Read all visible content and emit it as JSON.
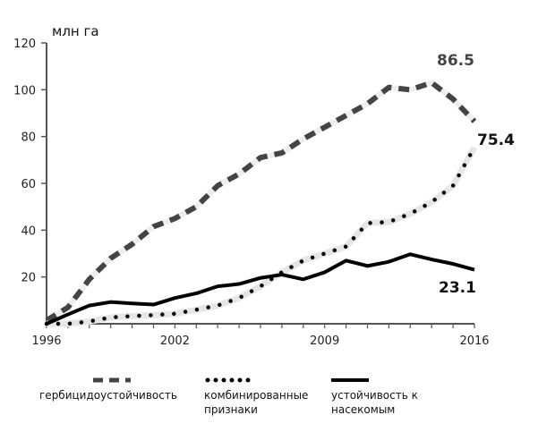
{
  "chart_data": {
    "type": "line",
    "title": "",
    "ylabel": "млн га",
    "xlabel": "",
    "x": [
      1996,
      1997,
      1998,
      1999,
      2000,
      2001,
      2002,
      2003,
      2004,
      2005,
      2006,
      2007,
      2008,
      2009,
      2010,
      2011,
      2012,
      2013,
      2014,
      2015,
      2016
    ],
    "xticks": [
      "1996",
      "2002",
      "2009",
      "2016"
    ],
    "yticks": [
      "20",
      "40",
      "60",
      "80",
      "100",
      "120"
    ],
    "ylim": [
      0,
      120
    ],
    "xlim": [
      1996,
      2016
    ],
    "grid": false,
    "legend_position": "bottom",
    "series": [
      {
        "name": "гербицидоустойчивость",
        "style": "dashed",
        "color": "#444444",
        "values": [
          1.5,
          7,
          19,
          28,
          34,
          41.5,
          45,
          50,
          59,
          64,
          71,
          73,
          79,
          84,
          89,
          94,
          101,
          100,
          103,
          96,
          86.5
        ],
        "end_label": "86.5"
      },
      {
        "name": "комбинированные признаки",
        "style": "dotted",
        "color": "#000000",
        "values": [
          0,
          0,
          1,
          2.7,
          3.3,
          3.7,
          4.3,
          6,
          7.8,
          11,
          16,
          22,
          27,
          30,
          33,
          43,
          43.5,
          47,
          52,
          59,
          75.4
        ],
        "end_label": "75.4"
      },
      {
        "name": "устойчивость к насекомым",
        "style": "solid",
        "color": "#000000",
        "values": [
          0,
          4,
          7.8,
          9.3,
          8.7,
          8.2,
          11,
          13,
          16,
          17,
          19.6,
          21,
          19,
          22,
          27,
          24.7,
          26.5,
          29.7,
          27.5,
          25.6,
          23.1
        ],
        "end_label": "23.1"
      }
    ]
  },
  "legend": {
    "herbicide": "гербицидоустойчивость",
    "combined_1": "комбинированные",
    "combined_2": "признаки",
    "insect_1": "устойчивость к",
    "insect_2": "насекомым"
  }
}
